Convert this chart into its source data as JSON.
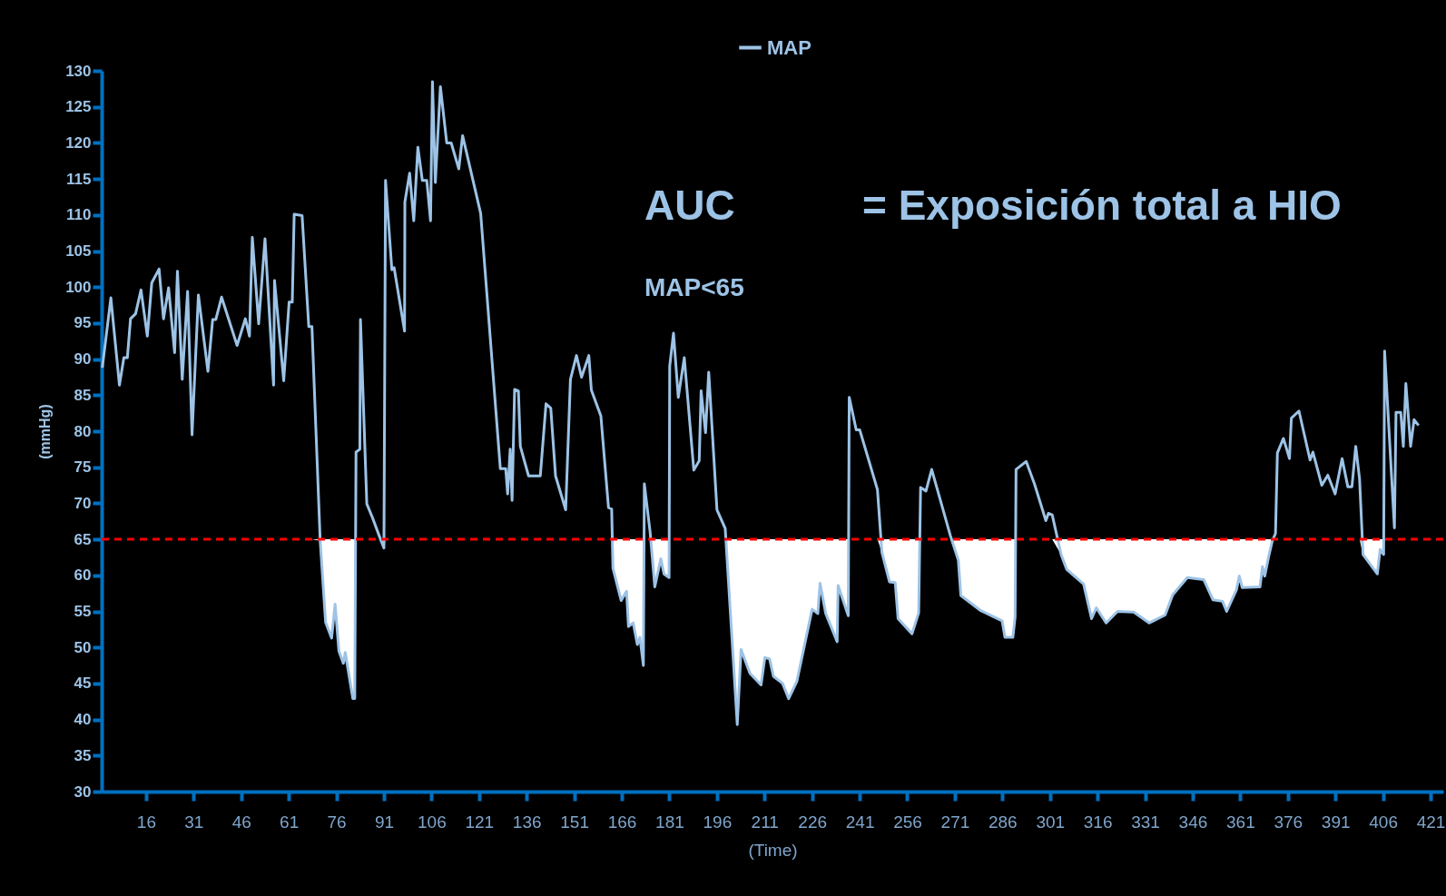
{
  "chart_data": {
    "type": "line",
    "xlabel": "(Time)",
    "ylabel": "(mmHg)",
    "annotations": [
      "AUC",
      "= Exposición total a HIO",
      "MAP<65"
    ],
    "xlim": [
      2,
      425
    ],
    "xticks": [
      16,
      31,
      46,
      61,
      76,
      91,
      106,
      121,
      136,
      151,
      166,
      181,
      196,
      211,
      226,
      241,
      256,
      271,
      286,
      301,
      316,
      331,
      346,
      361,
      376,
      391,
      406,
      421
    ],
    "ylim": [
      30,
      130
    ],
    "yticks": [
      30,
      35,
      40,
      45,
      50,
      55,
      60,
      65,
      70,
      75,
      80,
      85,
      90,
      95,
      100,
      105,
      110,
      115,
      120,
      125,
      130
    ],
    "grid": false,
    "legend": "top",
    "ref_lines": [
      {
        "axis": "y",
        "value": 65,
        "color": "#ff0000",
        "line_style": "dashed"
      }
    ],
    "x": [
      2.2,
      4.9,
      7.6,
      9.0,
      10.1,
      11.1,
      12.7,
      14.4,
      16.4,
      17.8,
      20.1,
      21.5,
      23.1,
      25.0,
      25.9,
      27.4,
      29.1,
      30.5,
      32.5,
      35.5,
      37.0,
      38.0,
      39.8,
      44.7,
      47.3,
      48.6,
      49.5,
      51.5,
      53.5,
      56.2,
      56.5,
      59.4,
      61.1,
      62.1,
      62.7,
      65.2,
      67.3,
      68.3,
      70.9,
      72.6,
      74.5,
      75.6,
      76.8,
      78.2,
      78.8,
      81.2,
      81.8,
      82.2,
      83.4,
      83.6,
      85.6,
      87.3,
      89.5,
      91.0,
      91.5,
      93.5,
      94.2,
      97.5,
      97.6,
      99.1,
      100.4,
      101.7,
      103.1,
      104.5,
      105.7,
      106.3,
      107.2,
      108.8,
      110.8,
      112.2,
      114.6,
      115.8,
      121.5,
      127.7,
      129.4,
      130.0,
      130.8,
      131.4,
      132.2,
      133.4,
      134.0,
      136.6,
      140.3,
      142.1,
      143.6,
      145.1,
      148.3,
      149.8,
      151.7,
      153.3,
      155.6,
      156.4,
      159.4,
      161.8,
      162.8,
      163.2,
      165.8,
      167.5,
      168.1,
      169.6,
      170.9,
      171.7,
      172.8,
      173.1,
      174.9,
      176.4,
      178.3,
      179.3,
      180.9,
      181.1,
      182.3,
      183.8,
      185.7,
      188.7,
      190.4,
      191.0,
      192.4,
      193.4,
      196.0,
      198.6,
      202.4,
      203.6,
      206.4,
      209.9,
      211.1,
      212.6,
      213.8,
      216.7,
      218.6,
      221.2,
      226.0,
      227.8,
      228.5,
      230.3,
      233.9,
      234.2,
      237.4,
      237.7,
      239.9,
      241.0,
      246.6,
      248.0,
      250.4,
      252.2,
      253.1,
      257.5,
      259.6,
      260.2,
      261.9,
      263.7,
      269.6,
      272.1,
      272.9,
      279.2,
      285.9,
      286.8,
      289.3,
      290.0,
      290.3,
      293.5,
      296.1,
      299.7,
      300.5,
      301.7,
      304.5,
      306.3,
      311.6,
      314.1,
      315.6,
      318.7,
      322.3,
      327.4,
      332.3,
      337.3,
      339.7,
      344.3,
      349.5,
      352.4,
      355.4,
      356.7,
      359.8,
      360.7,
      361.6,
      367.2,
      368.0,
      368.7,
      369.9,
      371.1,
      372.1,
      372.7,
      374.6,
      376.5,
      377.1,
      379.5,
      383.0,
      383.9,
      386.7,
      388.6,
      390.9,
      393.1,
      394.9,
      396.2,
      397.4,
      398.6,
      399.7,
      404.2,
      405.1,
      406.2,
      406.5,
      409.6,
      410.1,
      411.6,
      412.4,
      413.2,
      414.7,
      415.8,
      417.2
    ],
    "series": [
      {
        "name": "MAP",
        "color": "#9dc3e6",
        "values": [
          88.8,
          98.5,
          86.4,
          90.2,
          90.2,
          95.6,
          96.3,
          99.6,
          93.2,
          100.6,
          102.5,
          95.6,
          99.9,
          90.9,
          102.2,
          87.2,
          99.4,
          79.5,
          98.9,
          88.3,
          95.5,
          95.5,
          98.6,
          91.9,
          95.6,
          93.2,
          106.9,
          94.9,
          106.7,
          86.4,
          100.9,
          87.0,
          97.9,
          97.9,
          110.1,
          109.9,
          94.5,
          94.5,
          64.8,
          53.5,
          51.3,
          56.0,
          49.5,
          47.8,
          49.3,
          42.9,
          42.9,
          77.1,
          77.5,
          95.5,
          69.9,
          68.1,
          65.5,
          63.8,
          114.8,
          102.4,
          102.7,
          93.9,
          111.8,
          115.8,
          109.2,
          119.4,
          114.8,
          114.8,
          109.2,
          128.5,
          114.5,
          127.8,
          120,
          120,
          116.4,
          121,
          110.2,
          74.8,
          74.8,
          71.3,
          77.5,
          70.4,
          85.8,
          85.6,
          77.9,
          73.8,
          73.8,
          83.8,
          83.2,
          73.8,
          69.1,
          87.2,
          90.5,
          87.5,
          90.5,
          85.7,
          82.1,
          69.4,
          69.2,
          61,
          56.5,
          57.8,
          52.9,
          53.4,
          50.4,
          51.4,
          47.5,
          72.7,
          66.1,
          58.4,
          62.3,
          60.2,
          59.7,
          89.0,
          93.6,
          84.7,
          90.2,
          74.6,
          75.9,
          85.6,
          79.8,
          88.2,
          69.1,
          66.5,
          39.3,
          49.7,
          46.4,
          44.8,
          48.6,
          48.4,
          46.0,
          45.0,
          42.9,
          45.3,
          55.3,
          54.7,
          58.9,
          54.7,
          50.8,
          58.6,
          54.4,
          84.7,
          80.2,
          80.2,
          71.9,
          63.2,
          59.1,
          59.0,
          54.0,
          51.9,
          54.8,
          72.2,
          71.7,
          74.7,
          65.5,
          62.1,
          57.2,
          55.1,
          53.7,
          51.4,
          51.4,
          54.2,
          74.7,
          75.8,
          72.7,
          67.6,
          68.6,
          68.4,
          62.9,
          60.8,
          58.8,
          54.0,
          55.5,
          53.4,
          55.0,
          54.9,
          53.4,
          54.5,
          57.3,
          59.7,
          59.4,
          56.6,
          56.4,
          55.0,
          58.0,
          59.9,
          58.3,
          58.4,
          61.2,
          59.9,
          62.5,
          64.8,
          65.8,
          77.0,
          79.0,
          76.2,
          81.8,
          82.8,
          76.0,
          77.1,
          72.5,
          73.9,
          71.3,
          76.2,
          72.3,
          72.3,
          77.9,
          73.4,
          62.9,
          60.2,
          63.6,
          62.9,
          91.1,
          66.6,
          82.6,
          82.6,
          77.9,
          86.6,
          77.9,
          81.6,
          80.8
        ],
        "lower": [
          null,
          null,
          null,
          null,
          null,
          null,
          null,
          null,
          null,
          null,
          null,
          null,
          null,
          null,
          null,
          null,
          null,
          null,
          null,
          null,
          null,
          null,
          null,
          null,
          null,
          null,
          null,
          null,
          null,
          null,
          null,
          null,
          null,
          null,
          null,
          null,
          null,
          65,
          64.8,
          53.5,
          51.3,
          56.0,
          49.5,
          47.8,
          49.3,
          42.9,
          42.9,
          65,
          null,
          null,
          null,
          null,
          65,
          63.8,
          65,
          null,
          null,
          null,
          null,
          null,
          null,
          null,
          null,
          null,
          null,
          null,
          null,
          null,
          null,
          null,
          null,
          null,
          null,
          null,
          null,
          null,
          null,
          null,
          null,
          null,
          null,
          null,
          null,
          null,
          null,
          null,
          null,
          null,
          null,
          null,
          null,
          null,
          null,
          null,
          65,
          61,
          56.5,
          57.8,
          52.9,
          53.4,
          50.4,
          51.4,
          47.5,
          65,
          65,
          58.4,
          62.3,
          60.2,
          59.7,
          65,
          null,
          null,
          null,
          null,
          null,
          null,
          null,
          null,
          null,
          65,
          39.3,
          49.7,
          46.4,
          44.8,
          48.6,
          48.4,
          46.0,
          45.0,
          42.9,
          45.3,
          55.3,
          54.7,
          58.9,
          54.7,
          50.8,
          58.6,
          54.4,
          65,
          null,
          null,
          65,
          63.2,
          59.1,
          59.0,
          54.0,
          51.9,
          54.8,
          65,
          null,
          null,
          65,
          62.1,
          57.2,
          55.1,
          53.7,
          51.4,
          51.4,
          54.2,
          65,
          null,
          null,
          null,
          null,
          65,
          62.9,
          60.8,
          58.8,
          54.0,
          55.5,
          53.4,
          55.0,
          54.9,
          53.4,
          54.5,
          57.3,
          59.7,
          59.4,
          56.6,
          56.4,
          55.0,
          58.0,
          59.9,
          58.3,
          58.4,
          61.2,
          59.9,
          62.5,
          64.8,
          65,
          null,
          null,
          null,
          null,
          null,
          null,
          null,
          null,
          null,
          null,
          null,
          null,
          null,
          null,
          65,
          62.9,
          60.2,
          63.6,
          62.9,
          65,
          null,
          null,
          null,
          null,
          null,
          null,
          null,
          null
        ],
        "upper": [
          null,
          null,
          null,
          null,
          null,
          null,
          null,
          null,
          null,
          null,
          null,
          null,
          null,
          null,
          null,
          null,
          null,
          null,
          null,
          null,
          null,
          null,
          null,
          null,
          null,
          null,
          null,
          null,
          null,
          null,
          null,
          null,
          null,
          null,
          null,
          null,
          null,
          65,
          65,
          65,
          65,
          65,
          65,
          65,
          65,
          65,
          65,
          65,
          null,
          null,
          null,
          null,
          65,
          65,
          65,
          null,
          null,
          null,
          null,
          null,
          null,
          null,
          null,
          null,
          null,
          null,
          null,
          null,
          null,
          null,
          null,
          null,
          null,
          null,
          null,
          null,
          null,
          null,
          null,
          null,
          null,
          null,
          null,
          null,
          null,
          null,
          null,
          null,
          null,
          null,
          null,
          null,
          null,
          null,
          65,
          65,
          65,
          65,
          65,
          65,
          65,
          65,
          65,
          65,
          65,
          65,
          65,
          65,
          65,
          65,
          null,
          null,
          null,
          null,
          null,
          null,
          null,
          null,
          null,
          65,
          65,
          65,
          65,
          65,
          65,
          65,
          65,
          65,
          65,
          65,
          65,
          65,
          65,
          65,
          65,
          65,
          65,
          65,
          null,
          null,
          65,
          65,
          65,
          65,
          65,
          65,
          65,
          65,
          null,
          null,
          65,
          65,
          65,
          65,
          65,
          65,
          65,
          65,
          65,
          null,
          null,
          null,
          null,
          65,
          65,
          65,
          65,
          65,
          65,
          65,
          65,
          65,
          65,
          65,
          65,
          65,
          65,
          65,
          65,
          65,
          65,
          65,
          65,
          65,
          65,
          65,
          65,
          65,
          65,
          null,
          null,
          null,
          null,
          null,
          null,
          null,
          null,
          null,
          null,
          null,
          null,
          null,
          null,
          65,
          65,
          65,
          65,
          65,
          65,
          null,
          null,
          null,
          null,
          null,
          null,
          null,
          null
        ]
      }
    ]
  }
}
